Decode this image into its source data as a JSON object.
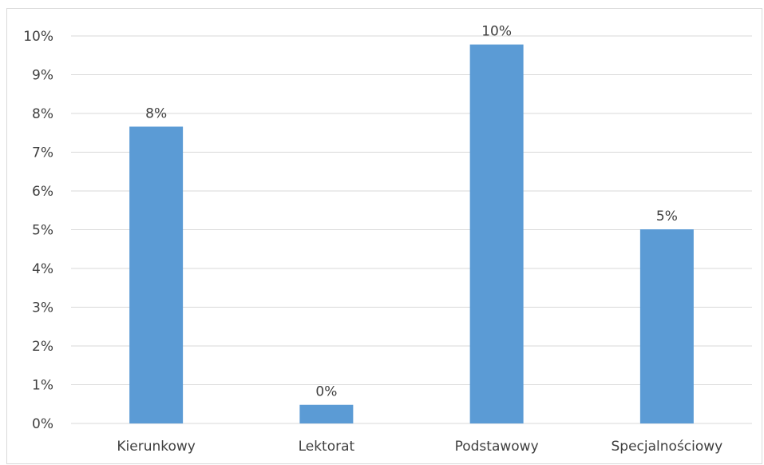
{
  "chart_data": {
    "type": "bar",
    "categories": [
      "Kierunkowy",
      "Lektorat",
      "Podstawowy",
      "Specjalnościowy"
    ],
    "values": [
      0.0766,
      0.0048,
      0.0978,
      0.0501
    ],
    "data_labels": [
      "8%",
      "0%",
      "10%",
      "5%"
    ],
    "title": "",
    "xlabel": "",
    "ylabel": "",
    "ylim": [
      0,
      0.1
    ],
    "yticks": [
      "0%",
      "1%",
      "2%",
      "3%",
      "4%",
      "5%",
      "6%",
      "7%",
      "8%",
      "9%",
      "10%"
    ],
    "grid": true,
    "legend": "none",
    "bar_color": "#5b9bd5",
    "grid_color": "#d9d9d9",
    "text_color": "#404040"
  }
}
